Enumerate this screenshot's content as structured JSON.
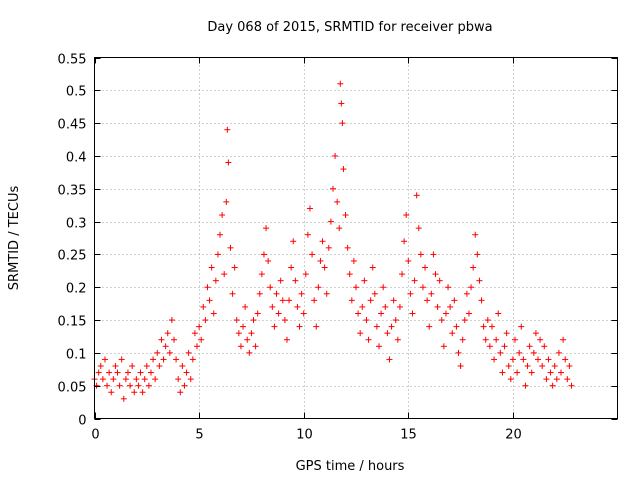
{
  "chart_data": {
    "type": "scatter",
    "title": "Day 068 of 2015, SRMTID for receiver pbwa",
    "xlabel": "GPS time / hours",
    "ylabel": "SRMTID / TECUs",
    "xlim": [
      0,
      25
    ],
    "ylim": [
      0,
      0.55
    ],
    "x_ticks": [
      0,
      5,
      10,
      15,
      20
    ],
    "x_tick_labels": [
      "0",
      "5",
      "10",
      "15",
      "20"
    ],
    "y_ticks": [
      0,
      0.05,
      0.1,
      0.15,
      0.2,
      0.25,
      0.3,
      0.35,
      0.4,
      0.45,
      0.5,
      0.55
    ],
    "y_tick_labels": [
      "0",
      "0.05",
      "0.1",
      "0.15",
      "0.2",
      "0.25",
      "0.3",
      "0.35",
      "0.4",
      "0.45",
      "0.5",
      "0.55"
    ],
    "grid": true,
    "marker": "plus",
    "marker_color": "#ff0000",
    "series": [
      {
        "name": "SRMTID",
        "points": [
          [
            0.0,
            0.06
          ],
          [
            0.1,
            0.05
          ],
          [
            0.2,
            0.07
          ],
          [
            0.3,
            0.08
          ],
          [
            0.4,
            0.06
          ],
          [
            0.5,
            0.09
          ],
          [
            0.6,
            0.05
          ],
          [
            0.7,
            0.07
          ],
          [
            0.8,
            0.04
          ],
          [
            0.9,
            0.06
          ],
          [
            1.0,
            0.08
          ],
          [
            1.1,
            0.07
          ],
          [
            1.2,
            0.05
          ],
          [
            1.3,
            0.09
          ],
          [
            1.4,
            0.03
          ],
          [
            1.5,
            0.06
          ],
          [
            1.6,
            0.07
          ],
          [
            1.7,
            0.05
          ],
          [
            1.8,
            0.08
          ],
          [
            1.9,
            0.04
          ],
          [
            2.0,
            0.06
          ],
          [
            2.1,
            0.05
          ],
          [
            2.2,
            0.07
          ],
          [
            2.3,
            0.04
          ],
          [
            2.4,
            0.06
          ],
          [
            2.5,
            0.08
          ],
          [
            2.6,
            0.05
          ],
          [
            2.7,
            0.07
          ],
          [
            2.8,
            0.09
          ],
          [
            2.9,
            0.06
          ],
          [
            3.0,
            0.1
          ],
          [
            3.1,
            0.08
          ],
          [
            3.2,
            0.12
          ],
          [
            3.3,
            0.09
          ],
          [
            3.4,
            0.11
          ],
          [
            3.5,
            0.13
          ],
          [
            3.6,
            0.1
          ],
          [
            3.7,
            0.15
          ],
          [
            3.8,
            0.12
          ],
          [
            3.9,
            0.09
          ],
          [
            4.0,
            0.06
          ],
          [
            4.1,
            0.04
          ],
          [
            4.2,
            0.08
          ],
          [
            4.3,
            0.05
          ],
          [
            4.4,
            0.07
          ],
          [
            4.5,
            0.1
          ],
          [
            4.6,
            0.06
          ],
          [
            4.7,
            0.09
          ],
          [
            4.8,
            0.13
          ],
          [
            4.9,
            0.11
          ],
          [
            5.0,
            0.14
          ],
          [
            5.1,
            0.12
          ],
          [
            5.2,
            0.17
          ],
          [
            5.3,
            0.15
          ],
          [
            5.4,
            0.2
          ],
          [
            5.5,
            0.18
          ],
          [
            5.6,
            0.23
          ],
          [
            5.7,
            0.16
          ],
          [
            5.8,
            0.21
          ],
          [
            5.9,
            0.25
          ],
          [
            6.0,
            0.28
          ],
          [
            6.1,
            0.31
          ],
          [
            6.2,
            0.22
          ],
          [
            6.3,
            0.33
          ],
          [
            6.35,
            0.44
          ],
          [
            6.4,
            0.39
          ],
          [
            6.5,
            0.26
          ],
          [
            6.6,
            0.19
          ],
          [
            6.7,
            0.23
          ],
          [
            6.8,
            0.15
          ],
          [
            6.9,
            0.13
          ],
          [
            7.0,
            0.11
          ],
          [
            7.1,
            0.14
          ],
          [
            7.2,
            0.17
          ],
          [
            7.3,
            0.12
          ],
          [
            7.4,
            0.1
          ],
          [
            7.5,
            0.13
          ],
          [
            7.6,
            0.15
          ],
          [
            7.7,
            0.11
          ],
          [
            7.8,
            0.16
          ],
          [
            7.9,
            0.19
          ],
          [
            8.0,
            0.22
          ],
          [
            8.1,
            0.25
          ],
          [
            8.2,
            0.29
          ],
          [
            8.3,
            0.24
          ],
          [
            8.4,
            0.2
          ],
          [
            8.5,
            0.17
          ],
          [
            8.6,
            0.14
          ],
          [
            8.7,
            0.19
          ],
          [
            8.8,
            0.16
          ],
          [
            8.9,
            0.21
          ],
          [
            9.0,
            0.18
          ],
          [
            9.1,
            0.15
          ],
          [
            9.2,
            0.12
          ],
          [
            9.3,
            0.18
          ],
          [
            9.4,
            0.23
          ],
          [
            9.5,
            0.27
          ],
          [
            9.6,
            0.21
          ],
          [
            9.7,
            0.17
          ],
          [
            9.8,
            0.14
          ],
          [
            9.9,
            0.19
          ],
          [
            10.0,
            0.16
          ],
          [
            10.1,
            0.22
          ],
          [
            10.2,
            0.28
          ],
          [
            10.3,
            0.32
          ],
          [
            10.4,
            0.25
          ],
          [
            10.5,
            0.18
          ],
          [
            10.6,
            0.14
          ],
          [
            10.7,
            0.2
          ],
          [
            10.8,
            0.24
          ],
          [
            10.9,
            0.27
          ],
          [
            11.0,
            0.23
          ],
          [
            11.1,
            0.19
          ],
          [
            11.2,
            0.26
          ],
          [
            11.3,
            0.3
          ],
          [
            11.4,
            0.35
          ],
          [
            11.5,
            0.4
          ],
          [
            11.6,
            0.33
          ],
          [
            11.7,
            0.29
          ],
          [
            11.75,
            0.51
          ],
          [
            11.8,
            0.48
          ],
          [
            11.85,
            0.45
          ],
          [
            11.9,
            0.38
          ],
          [
            12.0,
            0.31
          ],
          [
            12.1,
            0.26
          ],
          [
            12.2,
            0.22
          ],
          [
            12.3,
            0.18
          ],
          [
            12.4,
            0.24
          ],
          [
            12.5,
            0.2
          ],
          [
            12.6,
            0.16
          ],
          [
            12.7,
            0.13
          ],
          [
            12.8,
            0.17
          ],
          [
            12.9,
            0.21
          ],
          [
            13.0,
            0.15
          ],
          [
            13.1,
            0.12
          ],
          [
            13.2,
            0.18
          ],
          [
            13.3,
            0.23
          ],
          [
            13.4,
            0.19
          ],
          [
            13.5,
            0.14
          ],
          [
            13.6,
            0.11
          ],
          [
            13.7,
            0.16
          ],
          [
            13.8,
            0.2
          ],
          [
            13.9,
            0.17
          ],
          [
            14.0,
            0.13
          ],
          [
            14.1,
            0.09
          ],
          [
            14.2,
            0.14
          ],
          [
            14.3,
            0.18
          ],
          [
            14.4,
            0.15
          ],
          [
            14.5,
            0.12
          ],
          [
            14.6,
            0.17
          ],
          [
            14.7,
            0.22
          ],
          [
            14.8,
            0.27
          ],
          [
            14.9,
            0.31
          ],
          [
            15.0,
            0.24
          ],
          [
            15.1,
            0.19
          ],
          [
            15.2,
            0.16
          ],
          [
            15.3,
            0.21
          ],
          [
            15.4,
            0.34
          ],
          [
            15.5,
            0.29
          ],
          [
            15.6,
            0.25
          ],
          [
            15.7,
            0.2
          ],
          [
            15.8,
            0.23
          ],
          [
            15.9,
            0.18
          ],
          [
            16.0,
            0.14
          ],
          [
            16.1,
            0.19
          ],
          [
            16.2,
            0.25
          ],
          [
            16.3,
            0.22
          ],
          [
            16.4,
            0.17
          ],
          [
            16.5,
            0.21
          ],
          [
            16.6,
            0.15
          ],
          [
            16.7,
            0.11
          ],
          [
            16.8,
            0.16
          ],
          [
            16.9,
            0.2
          ],
          [
            17.0,
            0.17
          ],
          [
            17.1,
            0.13
          ],
          [
            17.2,
            0.18
          ],
          [
            17.3,
            0.14
          ],
          [
            17.4,
            0.1
          ],
          [
            17.5,
            0.08
          ],
          [
            17.6,
            0.12
          ],
          [
            17.7,
            0.15
          ],
          [
            17.8,
            0.19
          ],
          [
            17.9,
            0.16
          ],
          [
            18.0,
            0.2
          ],
          [
            18.1,
            0.23
          ],
          [
            18.2,
            0.28
          ],
          [
            18.3,
            0.25
          ],
          [
            18.4,
            0.21
          ],
          [
            18.5,
            0.18
          ],
          [
            18.6,
            0.14
          ],
          [
            18.7,
            0.12
          ],
          [
            18.8,
            0.15
          ],
          [
            18.9,
            0.11
          ],
          [
            19.0,
            0.14
          ],
          [
            19.1,
            0.09
          ],
          [
            19.2,
            0.12
          ],
          [
            19.3,
            0.16
          ],
          [
            19.4,
            0.1
          ],
          [
            19.5,
            0.07
          ],
          [
            19.6,
            0.11
          ],
          [
            19.7,
            0.13
          ],
          [
            19.8,
            0.08
          ],
          [
            19.9,
            0.06
          ],
          [
            20.0,
            0.09
          ],
          [
            20.1,
            0.12
          ],
          [
            20.2,
            0.07
          ],
          [
            20.3,
            0.1
          ],
          [
            20.4,
            0.14
          ],
          [
            20.5,
            0.09
          ],
          [
            20.6,
            0.05
          ],
          [
            20.7,
            0.08
          ],
          [
            20.8,
            0.11
          ],
          [
            20.9,
            0.07
          ],
          [
            21.0,
            0.1
          ],
          [
            21.1,
            0.13
          ],
          [
            21.2,
            0.09
          ],
          [
            21.3,
            0.12
          ],
          [
            21.4,
            0.08
          ],
          [
            21.5,
            0.11
          ],
          [
            21.6,
            0.06
          ],
          [
            21.7,
            0.09
          ],
          [
            21.8,
            0.07
          ],
          [
            21.9,
            0.05
          ],
          [
            22.0,
            0.08
          ],
          [
            22.1,
            0.06
          ],
          [
            22.2,
            0.1
          ],
          [
            22.3,
            0.07
          ],
          [
            22.4,
            0.12
          ],
          [
            22.5,
            0.09
          ],
          [
            22.6,
            0.06
          ],
          [
            22.7,
            0.08
          ],
          [
            22.8,
            0.05
          ]
        ]
      }
    ]
  }
}
